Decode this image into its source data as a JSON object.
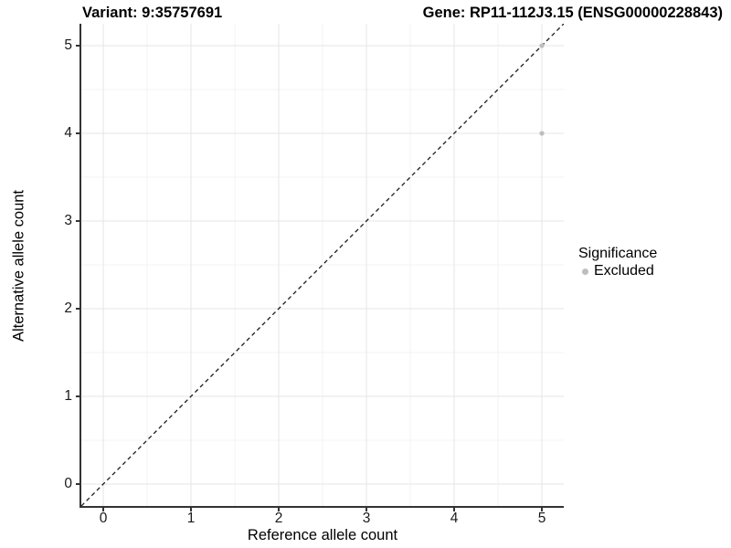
{
  "header": {
    "title_left": "Variant: 9:35757691",
    "title_right": "Gene: RP11-112J3.15 (ENSG00000228843)"
  },
  "chart_data": {
    "type": "scatter",
    "xlabel": "Reference allele count",
    "ylabel": "Alternative allele count",
    "xlim": [
      -0.25,
      5.25
    ],
    "ylim": [
      -0.25,
      5.25
    ],
    "x_ticks": [
      0,
      1,
      2,
      3,
      4,
      5
    ],
    "y_ticks": [
      0,
      1,
      2,
      3,
      4,
      5
    ],
    "minor_breaks": [
      0.5,
      1.5,
      2.5,
      3.5,
      4.5
    ],
    "grid": "major+minor",
    "series": [
      {
        "name": "Excluded",
        "color": "#bebebe",
        "points": [
          {
            "x": 5,
            "y": 4
          },
          {
            "x": 5,
            "y": 5
          }
        ]
      }
    ],
    "reference_line": {
      "type": "identity y=x",
      "style": "dashed",
      "color": "#1a1a1a"
    },
    "legend": {
      "position": "right",
      "title": "Significance",
      "entries": [
        {
          "label": "Excluded",
          "color": "#bebebe"
        }
      ]
    }
  },
  "colors": {
    "background": "#ffffff",
    "axis_line": "#333333",
    "grid_major": "#e6e6e6",
    "grid_minor": "#f3f3f3",
    "tick_text": "#1a1a1a",
    "point": "#bebebe"
  }
}
